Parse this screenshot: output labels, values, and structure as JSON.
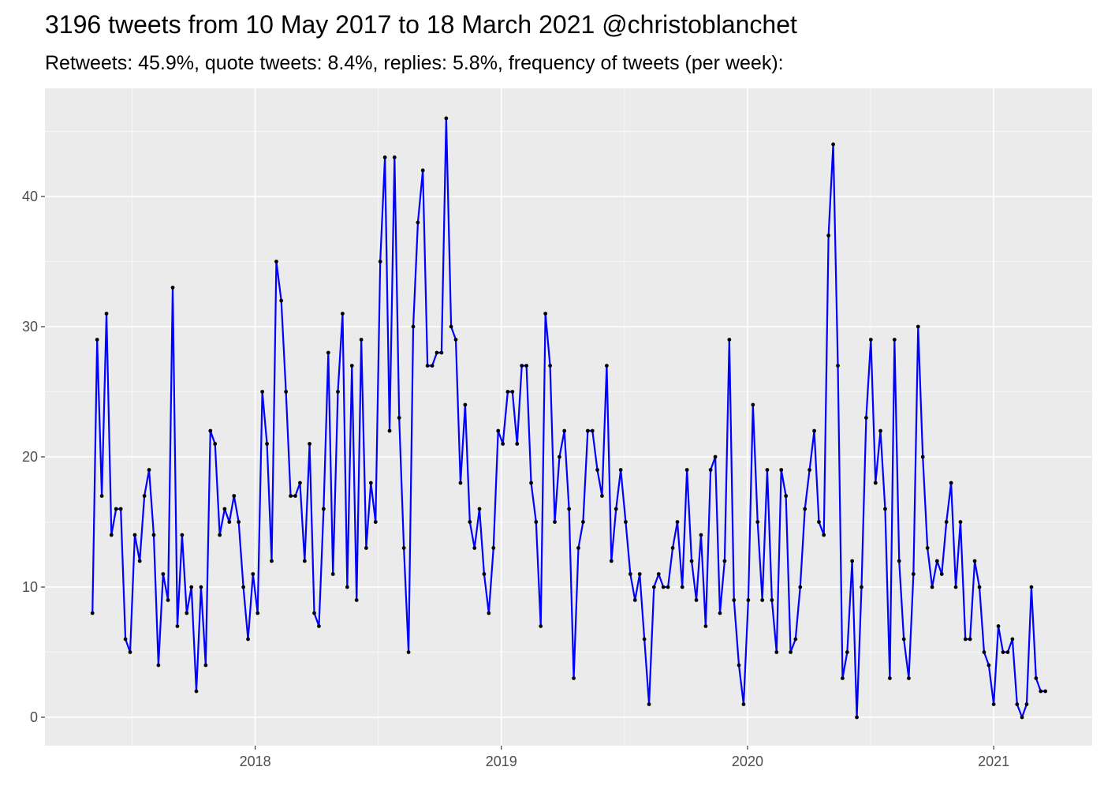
{
  "chart_data": {
    "type": "line",
    "title": "3196 tweets from 10 May 2017 to 18 March 2021 @christoblanchet",
    "subtitle": "Retweets: 45.9%, quote tweets: 8.4%, replies: 5.8%, frequency of tweets (per week):",
    "color": "#0000ff",
    "point_color": "#000000",
    "grid": true,
    "xlim": [
      2017.146,
      2021.4
    ],
    "xticks": [
      2018,
      2019,
      2020,
      2021
    ],
    "ylim": [
      -2.18,
      48.3
    ],
    "yticks": [
      0,
      10,
      20,
      30,
      40
    ],
    "x": [
      2017.339,
      2017.358,
      2017.377,
      2017.396,
      2017.416,
      2017.435,
      2017.454,
      2017.473,
      2017.492,
      2017.511,
      2017.531,
      2017.55,
      2017.569,
      2017.588,
      2017.607,
      2017.626,
      2017.646,
      2017.665,
      2017.684,
      2017.703,
      2017.722,
      2017.741,
      2017.761,
      2017.78,
      2017.799,
      2017.818,
      2017.837,
      2017.856,
      2017.876,
      2017.895,
      2017.914,
      2017.933,
      2017.952,
      2017.971,
      2017.991,
      2018.01,
      2018.029,
      2018.048,
      2018.067,
      2018.086,
      2018.106,
      2018.125,
      2018.144,
      2018.163,
      2018.182,
      2018.201,
      2018.221,
      2018.24,
      2018.259,
      2018.278,
      2018.297,
      2018.316,
      2018.336,
      2018.355,
      2018.374,
      2018.393,
      2018.412,
      2018.431,
      2018.451,
      2018.47,
      2018.489,
      2018.508,
      2018.527,
      2018.546,
      2018.566,
      2018.585,
      2018.604,
      2018.623,
      2018.642,
      2018.661,
      2018.681,
      2018.7,
      2018.719,
      2018.738,
      2018.757,
      2018.776,
      2018.796,
      2018.815,
      2018.834,
      2018.853,
      2018.872,
      2018.891,
      2018.911,
      2018.93,
      2018.949,
      2018.968,
      2018.987,
      2019.006,
      2019.026,
      2019.045,
      2019.064,
      2019.083,
      2019.102,
      2019.121,
      2019.141,
      2019.16,
      2019.179,
      2019.198,
      2019.217,
      2019.236,
      2019.256,
      2019.275,
      2019.294,
      2019.313,
      2019.332,
      2019.351,
      2019.37,
      2019.39,
      2019.409,
      2019.428,
      2019.447,
      2019.466,
      2019.485,
      2019.505,
      2019.524,
      2019.543,
      2019.562,
      2019.581,
      2019.6,
      2019.62,
      2019.639,
      2019.658,
      2019.677,
      2019.696,
      2019.715,
      2019.735,
      2019.754,
      2019.773,
      2019.792,
      2019.811,
      2019.83,
      2019.85,
      2019.869,
      2019.888,
      2019.907,
      2019.926,
      2019.945,
      2019.965,
      2019.984,
      2020.003,
      2020.022,
      2020.041,
      2020.06,
      2020.08,
      2020.099,
      2020.118,
      2020.137,
      2020.156,
      2020.175,
      2020.195,
      2020.214,
      2020.233,
      2020.252,
      2020.271,
      2020.29,
      2020.31,
      2020.329,
      2020.348,
      2020.367,
      2020.386,
      2020.405,
      2020.425,
      2020.444,
      2020.463,
      2020.482,
      2020.501,
      2020.52,
      2020.54,
      2020.559,
      2020.578,
      2020.597,
      2020.616,
      2020.635,
      2020.655,
      2020.674,
      2020.693,
      2020.712,
      2020.731,
      2020.75,
      2020.77,
      2020.789,
      2020.808,
      2020.827,
      2020.846,
      2020.865,
      2020.885,
      2020.904,
      2020.923,
      2020.942,
      2020.961,
      2020.98,
      2021.0,
      2021.019,
      2021.038,
      2021.057,
      2021.076,
      2021.095,
      2021.115,
      2021.134,
      2021.153,
      2021.172,
      2021.191,
      2021.21
    ],
    "values": [
      8,
      29,
      17,
      31,
      14,
      16,
      16,
      6,
      5,
      14,
      12,
      17,
      19,
      14,
      4,
      11,
      9,
      33,
      7,
      14,
      8,
      10,
      2,
      10,
      4,
      22,
      21,
      14,
      16,
      15,
      17,
      15,
      10,
      6,
      11,
      8,
      25,
      21,
      12,
      35,
      32,
      25,
      17,
      17,
      18,
      12,
      21,
      8,
      7,
      16,
      28,
      11,
      25,
      31,
      10,
      27,
      9,
      29,
      13,
      18,
      15,
      35,
      43,
      22,
      43,
      23,
      13,
      5,
      30,
      38,
      42,
      27,
      27,
      28,
      28,
      46,
      30,
      29,
      18,
      24,
      15,
      13,
      16,
      11,
      8,
      13,
      22,
      21,
      25,
      25,
      21,
      27,
      27,
      18,
      15,
      7,
      31,
      27,
      15,
      20,
      22,
      16,
      3,
      13,
      15,
      22,
      22,
      19,
      17,
      27,
      12,
      16,
      19,
      15,
      11,
      9,
      11,
      6,
      1,
      10,
      11,
      10,
      10,
      13,
      15,
      10,
      19,
      12,
      9,
      14,
      7,
      19,
      20,
      8,
      12,
      29,
      9,
      4,
      1,
      9,
      24,
      15,
      9,
      19,
      9,
      5,
      19,
      17,
      5,
      6,
      10,
      16,
      19,
      22,
      15,
      14,
      37,
      44,
      27,
      3,
      5,
      12,
      0,
      10,
      23,
      29,
      18,
      22,
      16,
      3,
      29,
      12,
      6,
      3,
      11,
      30,
      20,
      13,
      10,
      12,
      11,
      15,
      18,
      10,
      15,
      6,
      6,
      12,
      10,
      5,
      4,
      1,
      7,
      5,
      5,
      6,
      1,
      0,
      1,
      10,
      3,
      2,
      2
    ]
  }
}
